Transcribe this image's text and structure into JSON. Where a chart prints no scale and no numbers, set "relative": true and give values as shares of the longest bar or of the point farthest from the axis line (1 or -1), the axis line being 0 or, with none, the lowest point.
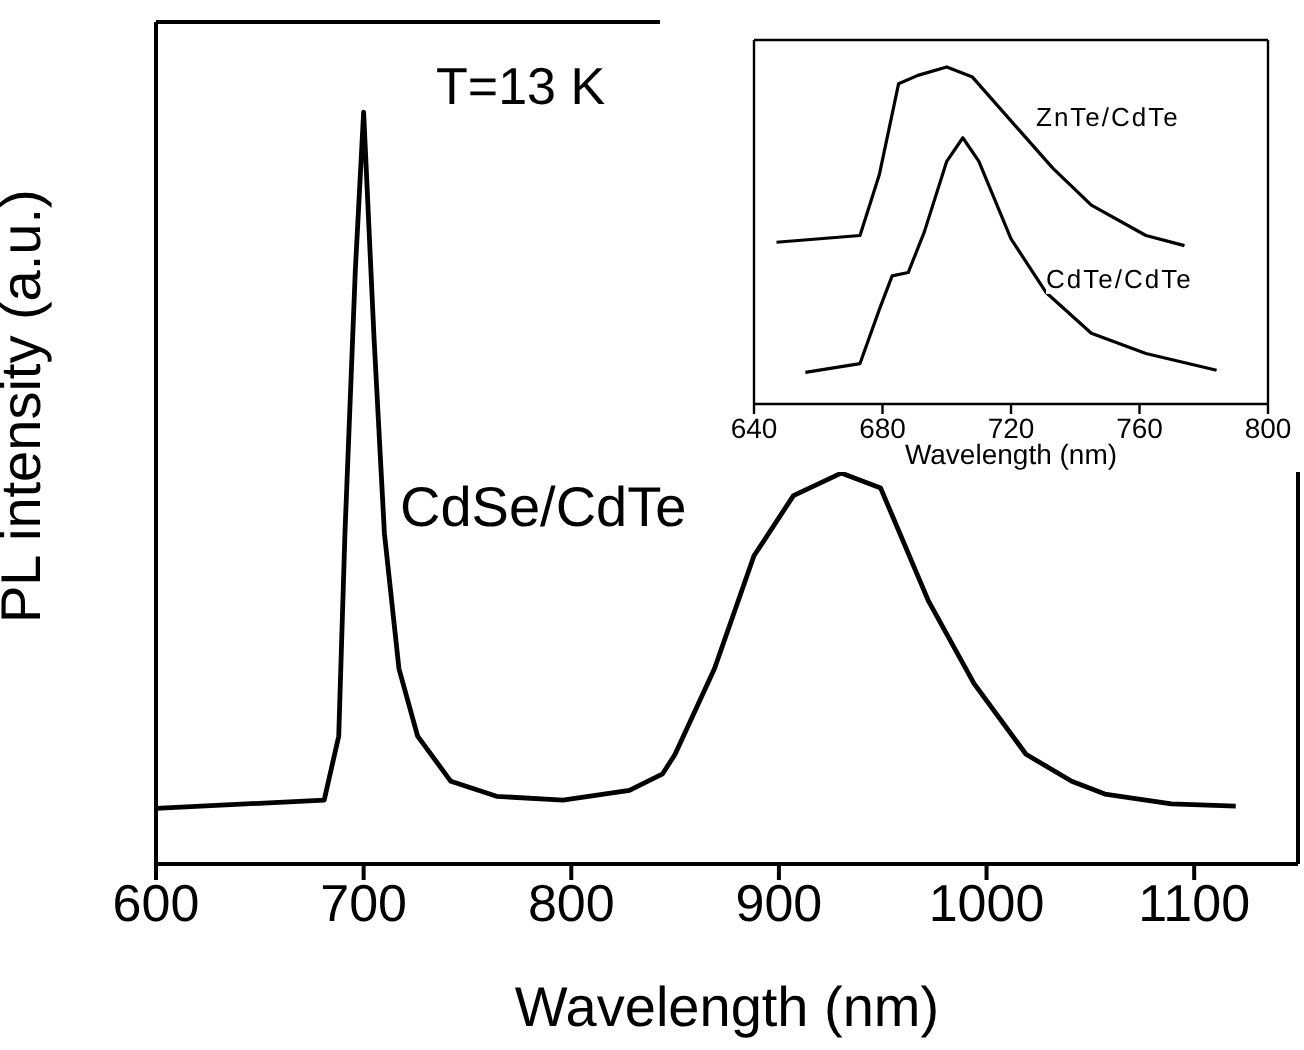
{
  "chart_data": [
    {
      "type": "line",
      "relative": true,
      "xlabel": "Wavelength (nm)",
      "ylabel": "PL intensity (a.u.)",
      "xlim": [
        600,
        1150
      ],
      "xticks": [
        600,
        700,
        800,
        900,
        1000,
        1100
      ],
      "annotations": [
        "T=13 K"
      ],
      "tick_labels": "x",
      "series": [
        {
          "name": "CdSe/CdTe",
          "color": "#000000",
          "x": [
            600,
            681,
            688,
            691,
            696,
            700,
            705,
            710,
            717,
            726,
            742,
            764,
            796,
            828,
            844,
            850,
            869,
            888,
            907,
            930,
            949,
            972,
            994,
            1019,
            1041,
            1057,
            1089,
            1120
          ],
          "values": [
            0.074,
            0.085,
            0.17,
            0.44,
            0.79,
            1.0,
            0.7,
            0.44,
            0.26,
            0.17,
            0.11,
            0.09,
            0.085,
            0.098,
            0.12,
            0.146,
            0.26,
            0.41,
            0.49,
            0.52,
            0.5,
            0.35,
            0.24,
            0.146,
            0.11,
            0.093,
            0.08,
            0.077
          ]
        }
      ]
    },
    {
      "type": "line",
      "relative": true,
      "xlabel": "Wavelength (nm)",
      "xlim": [
        640,
        800
      ],
      "xticks": [
        640,
        680,
        720,
        760,
        800
      ],
      "tick_labels": "x",
      "series": [
        {
          "name": "ZnTe/CdTe",
          "color": "#000000",
          "x": [
            647,
            673,
            679,
            685,
            691,
            700,
            708,
            720,
            733,
            745,
            762,
            774
          ],
          "values": [
            0.48,
            0.5,
            0.68,
            0.95,
            0.975,
            1.0,
            0.97,
            0.84,
            0.7,
            0.59,
            0.5,
            0.47
          ]
        },
        {
          "name": "CdTe/CdTe",
          "color": "#000000",
          "x": [
            656,
            673,
            679,
            683,
            688,
            693,
            700,
            705,
            710,
            720,
            731,
            745,
            762,
            784
          ],
          "values": [
            0.094,
            0.12,
            0.28,
            0.38,
            0.39,
            0.51,
            0.72,
            0.79,
            0.72,
            0.49,
            0.33,
            0.21,
            0.15,
            0.1
          ]
        }
      ]
    }
  ]
}
